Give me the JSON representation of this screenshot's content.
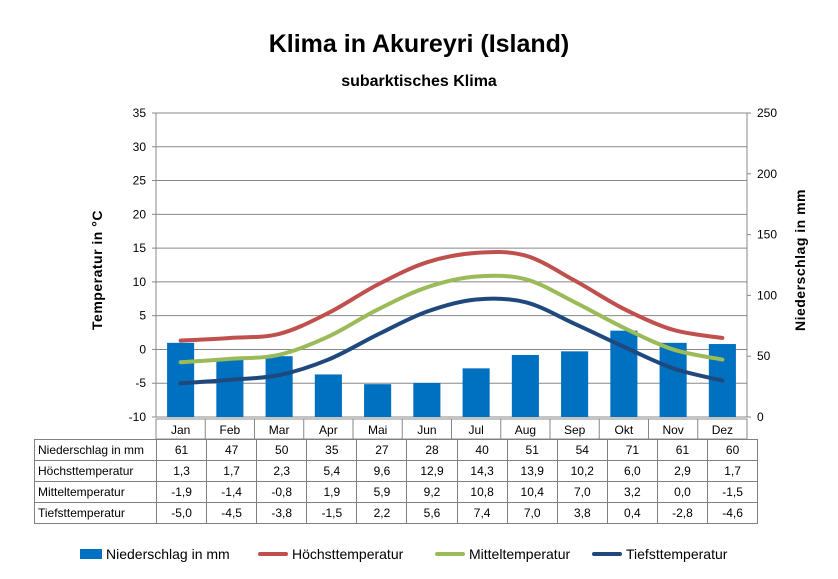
{
  "title": "Klima in Akureyri (Island)",
  "subtitle": "subarktisches Klima",
  "chart_data": {
    "type": "bar+line",
    "categories": [
      "Jan",
      "Feb",
      "Mar",
      "Apr",
      "Mai",
      "Jun",
      "Jul",
      "Aug",
      "Sep",
      "Okt",
      "Nov",
      "Dez"
    ],
    "y_left": {
      "label": "Temperatur in °C",
      "range": [
        -10,
        35
      ],
      "ticks": [
        -10,
        -5,
        0,
        5,
        10,
        15,
        20,
        25,
        30,
        35
      ]
    },
    "y_right": {
      "label": "Niederschlag in mm",
      "range": [
        0,
        250
      ],
      "ticks": [
        0,
        50,
        100,
        150,
        200,
        250
      ]
    },
    "grid": true,
    "legend_position": "bottom",
    "series": [
      {
        "name": "Niederschlag in mm",
        "type": "bar",
        "axis": "right",
        "color": "#0070C0",
        "values": [
          61,
          47,
          50,
          35,
          27,
          28,
          40,
          51,
          54,
          71,
          61,
          60
        ],
        "labels": [
          "61",
          "47",
          "50",
          "35",
          "27",
          "28",
          "40",
          "51",
          "54",
          "71",
          "61",
          "60"
        ]
      },
      {
        "name": "Höchsttemperatur",
        "type": "line",
        "axis": "left",
        "color": "#C0504D",
        "values": [
          1.3,
          1.7,
          2.3,
          5.4,
          9.6,
          12.9,
          14.3,
          13.9,
          10.2,
          6.0,
          2.9,
          1.7
        ],
        "labels": [
          "1,3",
          "1,7",
          "2,3",
          "5,4",
          "9,6",
          "12,9",
          "14,3",
          "13,9",
          "10,2",
          "6,0",
          "2,9",
          "1,7"
        ]
      },
      {
        "name": "Mitteltemperatur",
        "type": "line",
        "axis": "left",
        "color": "#9BBB59",
        "values": [
          -1.9,
          -1.4,
          -0.8,
          1.9,
          5.9,
          9.2,
          10.8,
          10.4,
          7.0,
          3.2,
          0.0,
          -1.5
        ],
        "labels": [
          "-1,9",
          "-1,4",
          "-0,8",
          "1,9",
          "5,9",
          "9,2",
          "10,8",
          "10,4",
          "7,0",
          "3,2",
          "0,0",
          "-1,5"
        ]
      },
      {
        "name": "Tiefsttemperatur",
        "type": "line",
        "axis": "left",
        "color": "#1F497D",
        "values": [
          -5.0,
          -4.5,
          -3.8,
          -1.5,
          2.2,
          5.6,
          7.4,
          7.0,
          3.8,
          0.4,
          -2.8,
          -4.6
        ],
        "labels": [
          "-5,0",
          "-4,5",
          "-3,8",
          "-1,5",
          "2,2",
          "5,6",
          "7,4",
          "7,0",
          "3,8",
          "0,4",
          "-2,8",
          "-4,6"
        ]
      }
    ]
  }
}
